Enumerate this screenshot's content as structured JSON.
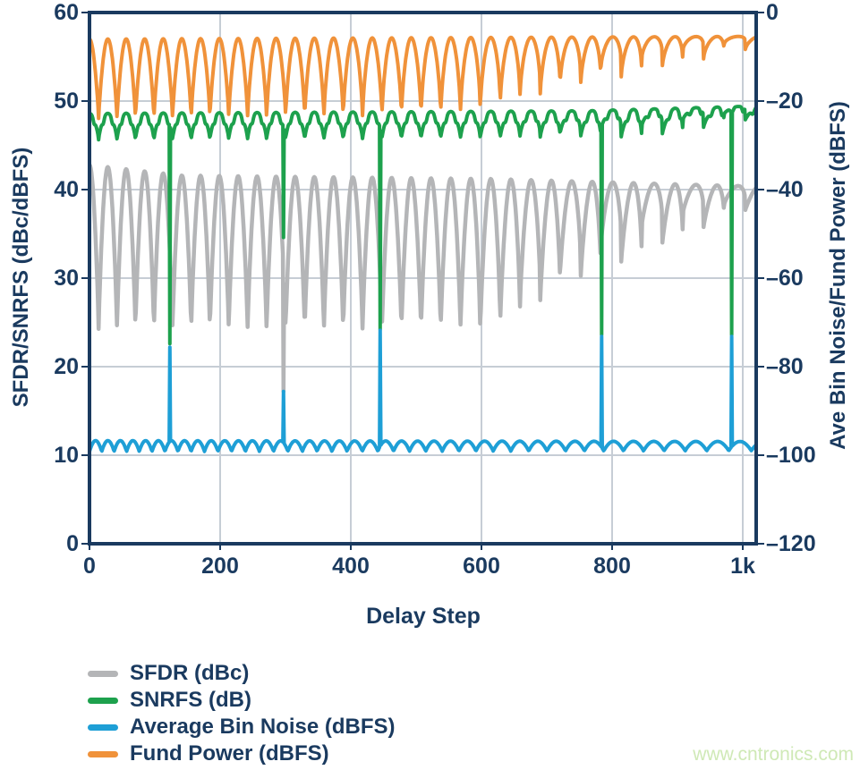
{
  "page": {
    "background": "#ffffff"
  },
  "colors": {
    "navy_text": "#1a3a5f",
    "axis_box": "#1a3a5f",
    "gridline": "#c6cdd5",
    "watermark": "#cfe9b6",
    "background": "#ffffff"
  },
  "watermark": {
    "text": "www.cntronics.com"
  },
  "chart_data": {
    "type": "line",
    "title": "",
    "xlabel": "Delay Step",
    "ylabel_left": "SFDR/SNRFS (dBc/dBFS)",
    "ylabel_right": "Ave Bin Noise/Fund Power (dBFS)",
    "grid": true,
    "legend_position": "bottom-left",
    "x_range": [
      0,
      1020
    ],
    "x_ticks": [
      {
        "label": "0",
        "value": 0
      },
      {
        "label": "200",
        "value": 200
      },
      {
        "label": "400",
        "value": 400
      },
      {
        "label": "600",
        "value": 600
      },
      {
        "label": "800",
        "value": 800
      },
      {
        "label": "1k",
        "value": 1000
      }
    ],
    "y_left": {
      "range": [
        0,
        60
      ],
      "ticks": [
        {
          "label": "60",
          "value": 60
        },
        {
          "label": "50",
          "value": 50
        },
        {
          "label": "40",
          "value": 40
        },
        {
          "label": "30",
          "value": 30
        },
        {
          "label": "20",
          "value": 20
        },
        {
          "label": "10",
          "value": 10
        },
        {
          "label": "0",
          "value": 0
        }
      ]
    },
    "y_right": {
      "range": [
        -120,
        0
      ],
      "ticks": [
        {
          "label": "0",
          "value": 0
        },
        {
          "label": "–20",
          "value": -20
        },
        {
          "label": "–40",
          "value": -40
        },
        {
          "label": "–60",
          "value": -60
        },
        {
          "label": "–80",
          "value": -80
        },
        {
          "label": "–100",
          "value": -100
        },
        {
          "label": "–120",
          "value": -120
        }
      ]
    },
    "series": [
      {
        "name": "SFDR (dBc)",
        "color": "#b4b5b7",
        "axis": "left",
        "role": "sfdr",
        "stroke_width": 4.5
      },
      {
        "name": "SNRFS (dB)",
        "color": "#1da14d",
        "axis": "left",
        "role": "snrfs",
        "stroke_width": 4
      },
      {
        "name": "Average Bin Noise (dBFS)",
        "color": "#1e9fd6",
        "axis": "right",
        "role": "noise",
        "stroke_width": 4
      },
      {
        "name": "Fund Power (dBFS)",
        "color": "#f0923a",
        "axis": "right",
        "role": "fund",
        "stroke_width": 4
      }
    ],
    "draw_order": [
      "sfdr",
      "snrfs",
      "fund",
      "noise"
    ],
    "waveform_model": {
      "comment": "Quasi-periodic scalloping vs delay step; left-axis units (right axis dBFS = 2*(left-60)).",
      "start_phase": 0.5,
      "period_steps": [
        [
          0,
          28
        ],
        [
          1000,
          32
        ]
      ],
      "skew": [
        [
          0,
          1.0
        ],
        [
          500,
          1.0
        ],
        [
          1000,
          0.62
        ]
      ],
      "alternation": [
        [
          0,
          1.0
        ],
        [
          600,
          1.0
        ],
        [
          1000,
          0.35
        ]
      ],
      "sfdr": {
        "max": [
          [
            0,
            42.8
          ],
          [
            140,
            41.6
          ],
          [
            620,
            41.2
          ],
          [
            1000,
            40.4
          ]
        ],
        "min": [
          [
            0,
            24.2
          ],
          [
            615,
            24.2
          ],
          [
            760,
            30.0
          ],
          [
            1000,
            37.6
          ]
        ],
        "exp": 0.85
      },
      "snrfs": {
        "max": [
          [
            0,
            48.6
          ],
          [
            760,
            48.9
          ],
          [
            1000,
            49.4
          ]
        ],
        "min": [
          [
            0,
            45.6
          ],
          [
            860,
            45.9
          ],
          [
            1000,
            47.8
          ]
        ],
        "exp": 0.75,
        "notch_depth": 0.5
      },
      "noise": {
        "base": [
          [
            0,
            10.4
          ],
          [
            1000,
            10.5
          ]
        ],
        "amp": [
          [
            0,
            1.25
          ],
          [
            1000,
            1.05
          ]
        ],
        "freq_mult": [
          [
            0,
            1.5
          ],
          [
            1000,
            0.92
          ]
        ],
        "exp": 0.9
      },
      "fund": {
        "peak": [
          [
            0,
            57.0
          ],
          [
            1000,
            57.3
          ]
        ],
        "dip": [
          [
            0,
            48.0
          ],
          [
            560,
            48.3
          ],
          [
            760,
            51.5
          ],
          [
            1000,
            55.6
          ]
        ],
        "exp": [
          [
            0,
            0.85
          ],
          [
            1000,
            0.5
          ]
        ]
      }
    },
    "glitches": [
      {
        "step": 123,
        "snrfs_db": 22.6,
        "bin_noise_dbfs": -75.6
      },
      {
        "step": 297,
        "snrfs_db": 34.6,
        "bin_noise_dbfs": -85.6,
        "sfdr_dbc": 17.2
      },
      {
        "step": 445,
        "snrfs_db": 24.2,
        "bin_noise_dbfs": -71.8
      },
      {
        "step": 784,
        "snrfs_db": 23.6,
        "bin_noise_dbfs": -73.2
      },
      {
        "step": 983,
        "snrfs_db": 23.6,
        "bin_noise_dbfs": -73.2
      }
    ]
  }
}
